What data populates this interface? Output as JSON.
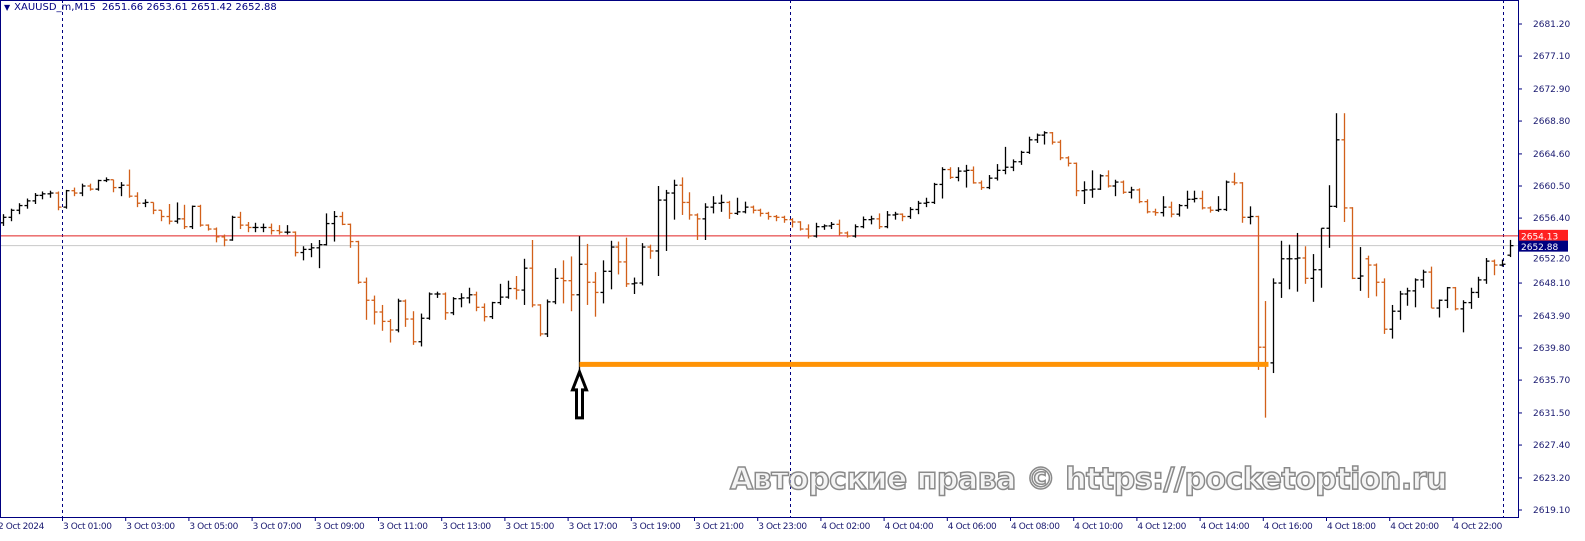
{
  "header": {
    "symbol_timeframe": "XAUUSD_m,M15",
    "ohlc_text": "2651.66 2653.61 2651.42 2652.88",
    "menu_icon": "triangle-down-icon"
  },
  "watermark": "Авторские права © https://pocketoption.ru",
  "colors": {
    "bull_bar": "#000000",
    "bear_bar": "#d2601a",
    "axis": "#000080",
    "ask_line": "#e02020",
    "bid_line": "#c8c8c8",
    "level_line": "#ff9305",
    "ask_label_bg": "#ff2020",
    "bid_label_bg": "#000080"
  },
  "chart_data": {
    "type": "ohlc-bar",
    "symbol": "XAUUSD_m",
    "timeframe": "M15",
    "ylim": [
      2619.1,
      2681.2
    ],
    "y_ticks": [
      "2681.20",
      "2677.10",
      "2672.90",
      "2668.80",
      "2664.60",
      "2660.50",
      "2656.40",
      "2652.20",
      "2648.10",
      "2643.90",
      "2639.80",
      "2635.70",
      "2631.50",
      "2627.40",
      "2623.20",
      "2619.10"
    ],
    "x_ticks": [
      "2 Oct 2024",
      "3 Oct 01:00",
      "3 Oct 03:00",
      "3 Oct 05:00",
      "3 Oct 07:00",
      "3 Oct 09:00",
      "3 Oct 11:00",
      "3 Oct 13:00",
      "3 Oct 15:00",
      "3 Oct 17:00",
      "3 Oct 19:00",
      "3 Oct 21:00",
      "3 Oct 23:00",
      "4 Oct 02:00",
      "4 Oct 04:00",
      "4 Oct 06:00",
      "4 Oct 08:00",
      "4 Oct 10:00",
      "4 Oct 12:00",
      "4 Oct 14:00",
      "4 Oct 16:00",
      "4 Oct 18:00",
      "4 Oct 20:00",
      "4 Oct 22:00"
    ],
    "ask_price": "2654.13",
    "bid_price": "2652.88",
    "level_line": {
      "price": 2637.7,
      "from_bar": 73,
      "to_bar": 160
    },
    "arrow": {
      "type": "up-arrow",
      "bar": 73,
      "price": 2637.0
    },
    "ohlc": [
      [
        2655.8,
        2656.9,
        2655.4,
        2656.5
      ],
      [
        2656.5,
        2657.6,
        2656.0,
        2657.4
      ],
      [
        2657.4,
        2658.3,
        2656.9,
        2658.0
      ],
      [
        2658.0,
        2658.9,
        2657.6,
        2658.6
      ],
      [
        2658.6,
        2659.6,
        2658.2,
        2659.3
      ],
      [
        2659.3,
        2659.8,
        2658.8,
        2659.5
      ],
      [
        2659.5,
        2659.9,
        2659.0,
        2659.6
      ],
      [
        2659.6,
        2659.8,
        2657.4,
        2657.8
      ],
      [
        2657.8,
        2660.0,
        2657.6,
        2659.9
      ],
      [
        2659.9,
        2660.3,
        2659.2,
        2659.6
      ],
      [
        2659.6,
        2660.8,
        2659.2,
        2660.5
      ],
      [
        2660.5,
        2660.8,
        2659.9,
        2660.1
      ],
      [
        2660.1,
        2661.3,
        2659.9,
        2661.2
      ],
      [
        2661.2,
        2661.6,
        2661.0,
        2661.3
      ],
      [
        2661.3,
        2661.3,
        2659.7,
        2660.3
      ],
      [
        2660.3,
        2661.0,
        2659.2,
        2660.6
      ],
      [
        2660.6,
        2662.6,
        2659.0,
        2659.2
      ],
      [
        2659.2,
        2659.7,
        2657.8,
        2658.3
      ],
      [
        2658.3,
        2658.8,
        2657.8,
        2658.4
      ],
      [
        2658.4,
        2658.4,
        2656.9,
        2657.4
      ],
      [
        2657.4,
        2657.4,
        2656.0,
        2656.6
      ],
      [
        2656.6,
        2658.2,
        2655.6,
        2656.0
      ],
      [
        2656.0,
        2658.4,
        2655.7,
        2656.3
      ],
      [
        2656.3,
        2658.1,
        2655.0,
        2655.3
      ],
      [
        2655.3,
        2658.0,
        2655.0,
        2657.9
      ],
      [
        2657.9,
        2658.1,
        2655.3,
        2655.5
      ],
      [
        2655.5,
        2655.6,
        2654.8,
        2655.0
      ],
      [
        2655.0,
        2655.2,
        2653.3,
        2654.0
      ],
      [
        2654.0,
        2654.3,
        2652.8,
        2653.6
      ],
      [
        2653.6,
        2656.7,
        2653.5,
        2656.5
      ],
      [
        2656.5,
        2657.2,
        2655.0,
        2655.5
      ],
      [
        2655.5,
        2655.9,
        2654.6,
        2655.2
      ],
      [
        2655.2,
        2655.8,
        2654.6,
        2655.2
      ],
      [
        2655.2,
        2655.7,
        2654.6,
        2655.2
      ],
      [
        2655.2,
        2655.7,
        2654.3,
        2654.8
      ],
      [
        2654.8,
        2655.5,
        2654.3,
        2654.6
      ],
      [
        2654.6,
        2655.5,
        2654.3,
        2654.6
      ],
      [
        2654.6,
        2654.7,
        2651.5,
        2652.0
      ],
      [
        2652.0,
        2652.8,
        2651.0,
        2652.4
      ],
      [
        2652.4,
        2653.2,
        2651.4,
        2652.6
      ],
      [
        2652.6,
        2653.6,
        2650.0,
        2653.0
      ],
      [
        2653.0,
        2657.0,
        2652.9,
        2655.7
      ],
      [
        2655.7,
        2657.3,
        2653.4,
        2656.6
      ],
      [
        2656.6,
        2657.2,
        2655.5,
        2655.6
      ],
      [
        2655.6,
        2655.7,
        2652.6,
        2653.4
      ],
      [
        2653.4,
        2653.5,
        2648.0,
        2648.2
      ],
      [
        2648.2,
        2648.8,
        2643.4,
        2645.9
      ],
      [
        2645.9,
        2646.5,
        2642.8,
        2644.4
      ],
      [
        2644.4,
        2645.3,
        2642.0,
        2643.2
      ],
      [
        2643.2,
        2643.5,
        2640.5,
        2642.1
      ],
      [
        2642.1,
        2646.1,
        2641.8,
        2645.8
      ],
      [
        2645.8,
        2646.0,
        2642.5,
        2643.5
      ],
      [
        2643.5,
        2644.5,
        2640.2,
        2640.6
      ],
      [
        2640.6,
        2644.2,
        2640.0,
        2643.6
      ],
      [
        2643.6,
        2646.9,
        2643.4,
        2646.7
      ],
      [
        2646.7,
        2647.0,
        2646.2,
        2646.7
      ],
      [
        2646.7,
        2646.9,
        2643.4,
        2644.3
      ],
      [
        2644.3,
        2646.3,
        2644.0,
        2646.1
      ],
      [
        2646.1,
        2646.8,
        2645.0,
        2646.2
      ],
      [
        2646.2,
        2647.5,
        2645.5,
        2646.6
      ],
      [
        2646.6,
        2647.0,
        2644.5,
        2645.0
      ],
      [
        2645.0,
        2645.5,
        2643.2,
        2643.8
      ],
      [
        2643.8,
        2645.7,
        2643.5,
        2645.6
      ],
      [
        2645.6,
        2648.0,
        2645.3,
        2646.3
      ],
      [
        2646.3,
        2648.4,
        2646.1,
        2647.4
      ],
      [
        2647.4,
        2649.0,
        2646.0,
        2647.2
      ],
      [
        2647.2,
        2651.2,
        2645.3,
        2650.0
      ],
      [
        2650.0,
        2653.6,
        2645.0,
        2645.3
      ],
      [
        2645.3,
        2645.4,
        2641.3,
        2641.6
      ],
      [
        2641.6,
        2646.0,
        2641.2,
        2645.7
      ],
      [
        2645.7,
        2650.0,
        2645.4,
        2648.7
      ],
      [
        2648.7,
        2651.0,
        2645.5,
        2648.4
      ],
      [
        2648.4,
        2651.5,
        2644.5,
        2646.6
      ],
      [
        2646.6,
        2654.1,
        2637.0,
        2650.5
      ],
      [
        2650.5,
        2653.1,
        2645.3,
        2648.2
      ],
      [
        2648.2,
        2649.5,
        2643.8,
        2646.9
      ],
      [
        2646.9,
        2651.0,
        2645.5,
        2649.6
      ],
      [
        2649.6,
        2653.5,
        2647.3,
        2652.7
      ],
      [
        2652.7,
        2653.4,
        2649.2,
        2650.8
      ],
      [
        2650.8,
        2653.9,
        2647.6,
        2648.0
      ],
      [
        2648.0,
        2648.8,
        2646.7,
        2648.1
      ],
      [
        2648.1,
        2653.2,
        2647.8,
        2652.7
      ],
      [
        2652.7,
        2653.0,
        2651.2,
        2652.2
      ],
      [
        2652.2,
        2660.5,
        2649.0,
        2658.7
      ],
      [
        2658.7,
        2660.0,
        2652.2,
        2659.6
      ],
      [
        2659.6,
        2661.3,
        2656.2,
        2660.6
      ],
      [
        2660.6,
        2661.6,
        2656.8,
        2658.4
      ],
      [
        2658.4,
        2659.7,
        2656.2,
        2656.8
      ],
      [
        2656.8,
        2657.0,
        2653.6,
        2656.3
      ],
      [
        2656.3,
        2658.3,
        2653.6,
        2657.8
      ],
      [
        2657.8,
        2659.2,
        2657.0,
        2658.3
      ],
      [
        2658.3,
        2659.4,
        2657.2,
        2658.4
      ],
      [
        2658.4,
        2658.6,
        2656.3,
        2657.0
      ],
      [
        2657.0,
        2659.0,
        2656.8,
        2657.2
      ],
      [
        2657.2,
        2658.5,
        2657.0,
        2657.8
      ],
      [
        2657.8,
        2658.0,
        2657.0,
        2657.4
      ],
      [
        2657.4,
        2657.6,
        2656.6,
        2657.0
      ],
      [
        2657.0,
        2657.2,
        2656.2,
        2656.6
      ],
      [
        2656.6,
        2656.8,
        2656.0,
        2656.5
      ],
      [
        2656.5,
        2656.7,
        2655.8,
        2656.2
      ],
      [
        2656.2,
        2656.4,
        2655.2,
        2655.9
      ],
      [
        2655.9,
        2656.0,
        2654.8,
        2655.0
      ],
      [
        2655.0,
        2655.6,
        2653.8,
        2654.1
      ],
      [
        2654.1,
        2655.8,
        2653.9,
        2655.3
      ],
      [
        2655.3,
        2655.6,
        2654.9,
        2655.4
      ],
      [
        2655.4,
        2655.9,
        2655.0,
        2655.6
      ],
      [
        2655.6,
        2656.2,
        2654.2,
        2654.5
      ],
      [
        2654.5,
        2654.7,
        2653.9,
        2654.1
      ],
      [
        2654.1,
        2655.6,
        2653.9,
        2655.3
      ],
      [
        2655.3,
        2656.6,
        2655.1,
        2656.2
      ],
      [
        2656.2,
        2656.7,
        2655.6,
        2656.3
      ],
      [
        2656.3,
        2657.0,
        2655.0,
        2655.3
      ],
      [
        2655.3,
        2657.3,
        2655.1,
        2656.8
      ],
      [
        2656.8,
        2657.2,
        2656.2,
        2656.9
      ],
      [
        2656.9,
        2657.0,
        2656.0,
        2656.6
      ],
      [
        2656.6,
        2657.8,
        2656.3,
        2657.5
      ],
      [
        2657.5,
        2658.6,
        2656.9,
        2658.3
      ],
      [
        2658.3,
        2659.0,
        2657.8,
        2658.4
      ],
      [
        2658.4,
        2660.9,
        2658.2,
        2660.7
      ],
      [
        2660.7,
        2662.9,
        2658.9,
        2662.6
      ],
      [
        2662.6,
        2662.9,
        2661.4,
        2661.6
      ],
      [
        2661.6,
        2662.9,
        2661.1,
        2662.4
      ],
      [
        2662.4,
        2663.2,
        2660.3,
        2662.5
      ],
      [
        2662.5,
        2663.0,
        2660.8,
        2660.9
      ],
      [
        2660.9,
        2661.2,
        2660.0,
        2660.3
      ],
      [
        2660.3,
        2661.9,
        2660.1,
        2661.5
      ],
      [
        2661.5,
        2663.3,
        2661.2,
        2662.5
      ],
      [
        2662.5,
        2665.5,
        2662.0,
        2662.9
      ],
      [
        2662.9,
        2663.9,
        2662.4,
        2663.6
      ],
      [
        2663.6,
        2665.0,
        2663.2,
        2664.8
      ],
      [
        2664.8,
        2666.8,
        2664.6,
        2666.4
      ],
      [
        2666.4,
        2667.2,
        2666.0,
        2667.0
      ],
      [
        2667.0,
        2667.5,
        2665.8,
        2667.3
      ],
      [
        2667.3,
        2667.4,
        2665.8,
        2666.1
      ],
      [
        2666.1,
        2666.4,
        2663.8,
        2664.1
      ],
      [
        2664.1,
        2664.3,
        2663.0,
        2663.4
      ],
      [
        2663.4,
        2663.5,
        2659.2,
        2659.9
      ],
      [
        2659.9,
        2661.1,
        2658.2,
        2660.0
      ],
      [
        2660.0,
        2662.5,
        2659.0,
        2660.1
      ],
      [
        2660.1,
        2662.0,
        2660.0,
        2661.8
      ],
      [
        2661.8,
        2662.5,
        2660.3,
        2660.5
      ],
      [
        2660.5,
        2661.3,
        2659.2,
        2661.0
      ],
      [
        2661.0,
        2661.2,
        2659.5,
        2659.7
      ],
      [
        2659.7,
        2660.4,
        2658.9,
        2660.0
      ],
      [
        2660.0,
        2660.2,
        2658.3,
        2658.5
      ],
      [
        2658.5,
        2658.8,
        2657.0,
        2657.2
      ],
      [
        2657.2,
        2657.6,
        2656.7,
        2657.1
      ],
      [
        2657.1,
        2659.2,
        2656.6,
        2657.8
      ],
      [
        2657.8,
        2658.5,
        2656.5,
        2656.9
      ],
      [
        2656.9,
        2658.2,
        2656.6,
        2658.0
      ],
      [
        2658.0,
        2659.9,
        2657.6,
        2658.8
      ],
      [
        2658.8,
        2659.9,
        2658.4,
        2658.9
      ],
      [
        2658.9,
        2659.9,
        2657.5,
        2657.7
      ],
      [
        2657.7,
        2657.9,
        2657.1,
        2657.4
      ],
      [
        2657.4,
        2659.2,
        2657.2,
        2657.5
      ],
      [
        2657.5,
        2661.2,
        2657.3,
        2661.0
      ],
      [
        2661.0,
        2662.2,
        2660.6,
        2660.9
      ],
      [
        2660.9,
        2661.0,
        2655.8,
        2656.5
      ],
      [
        2656.5,
        2657.9,
        2655.6,
        2656.6
      ],
      [
        2656.6,
        2656.7,
        2637.0,
        2639.9
      ],
      [
        2639.9,
        2645.8,
        2630.9,
        2637.9
      ],
      [
        2637.9,
        2648.7,
        2636.6,
        2648.1
      ],
      [
        2648.1,
        2653.5,
        2646.2,
        2651.2
      ],
      [
        2651.2,
        2653.0,
        2647.3,
        2651.2
      ],
      [
        2651.2,
        2654.5,
        2647.0,
        2651.3
      ],
      [
        2651.3,
        2652.8,
        2648.0,
        2648.7
      ],
      [
        2648.7,
        2651.8,
        2645.7,
        2649.8
      ],
      [
        2649.8,
        2655.1,
        2647.5,
        2655.1
      ],
      [
        2655.1,
        2660.6,
        2652.6,
        2657.9
      ],
      [
        2657.9,
        2669.8,
        2657.7,
        2666.4
      ],
      [
        2666.4,
        2669.8,
        2655.9,
        2657.7
      ],
      [
        2657.7,
        2657.8,
        2648.6,
        2648.7
      ],
      [
        2648.7,
        2652.7,
        2647.1,
        2649.0
      ],
      [
        2651.2,
        2651.6,
        2646.2,
        2650.4
      ],
      [
        2650.4,
        2650.6,
        2646.4,
        2648.2
      ],
      [
        2648.2,
        2648.7,
        2641.6,
        2642.2
      ],
      [
        2642.2,
        2645.3,
        2641.0,
        2644.5
      ],
      [
        2644.5,
        2647.1,
        2643.4,
        2646.7
      ],
      [
        2646.7,
        2647.5,
        2645.2,
        2647.1
      ],
      [
        2647.1,
        2648.7,
        2645.0,
        2648.5
      ],
      [
        2648.5,
        2649.8,
        2647.5,
        2649.5
      ],
      [
        2649.5,
        2650.2,
        2644.9,
        2644.9
      ],
      [
        2644.9,
        2646.0,
        2643.7,
        2645.9
      ],
      [
        2645.9,
        2647.6,
        2644.9,
        2647.5
      ],
      [
        2647.5,
        2647.6,
        2644.6,
        2644.8
      ],
      [
        2644.8,
        2645.9,
        2641.8,
        2645.6
      ],
      [
        2645.6,
        2647.5,
        2644.8,
        2646.9
      ],
      [
        2646.9,
        2648.9,
        2646.2,
        2648.5
      ],
      [
        2648.5,
        2651.3,
        2648.0,
        2650.9
      ],
      [
        2650.9,
        2651.1,
        2649.1,
        2650.4
      ],
      [
        2650.4,
        2651.1,
        2650.2,
        2650.5
      ],
      [
        2651.66,
        2653.61,
        2651.42,
        2652.88
      ]
    ]
  }
}
